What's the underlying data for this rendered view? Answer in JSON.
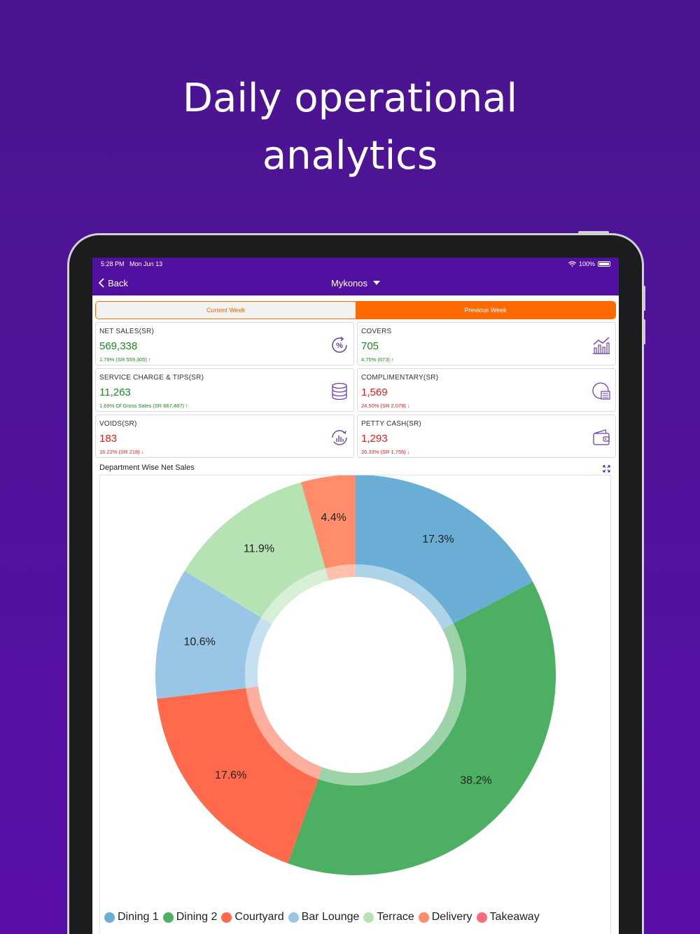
{
  "headline": {
    "line1": "Daily operational",
    "line2": "analytics"
  },
  "status": {
    "time": "5:28 PM",
    "date": "Mon Jun 13",
    "battery": "100%"
  },
  "nav": {
    "back_label": "Back",
    "title": "Mykonos"
  },
  "tabs": [
    {
      "label": "Current Week",
      "active": false
    },
    {
      "label": "Previous Week",
      "active": true
    }
  ],
  "cards": [
    {
      "label": "NET SALES(SR)",
      "value": "569,338",
      "sub": "1.79% (SR 559,305) ↑",
      "color": "green",
      "icon": "percent-cycle-icon"
    },
    {
      "label": "COVERS",
      "value": "705",
      "sub": "4.75% (673) ↑",
      "color": "green",
      "icon": "trend-chart-icon"
    },
    {
      "label": "SERVICE CHARGE & TIPS(SR)",
      "value": "11,263",
      "sub": "1.69% Of Gross Sales (SR 667,487) ↑",
      "color": "green",
      "icon": "coin-stack-icon"
    },
    {
      "label": "COMPLIMENTARY(SR)",
      "value": "1,569",
      "sub": "24.50% (SR 2,078) ↓",
      "color": "red",
      "icon": "plate-icon"
    },
    {
      "label": "VOIDS(SR)",
      "value": "183",
      "sub": "16.22% (SR 218) ↓",
      "color": "red",
      "icon": "refresh-chart-icon"
    },
    {
      "label": "PETTY CASH(SR)",
      "value": "1,293",
      "sub": "26.33% (SR 1,755) ↓",
      "color": "red",
      "icon": "wallet-icon"
    }
  ],
  "section": {
    "title": "Department Wise Net Sales"
  },
  "chart_data": {
    "type": "pie",
    "donut": true,
    "title": "Department Wise Net Sales",
    "categories": [
      "Dining 1",
      "Dining 2",
      "Courtyard",
      "Bar  Lounge",
      "Terrace",
      "Delivery",
      "Takeaway"
    ],
    "values": [
      17.3,
      38.2,
      17.6,
      10.6,
      11.9,
      4.4,
      0
    ],
    "labels": [
      "17.3%",
      "38.2%",
      "17.6%",
      "10.6%",
      "11.9%",
      "4.4%",
      ""
    ],
    "colors": [
      "#6aaed6",
      "#4caf62",
      "#ff6a4d",
      "#99c6e6",
      "#b6e3b3",
      "#ff8c6b",
      "#ff6b7a"
    ],
    "legend_position": "bottom"
  }
}
